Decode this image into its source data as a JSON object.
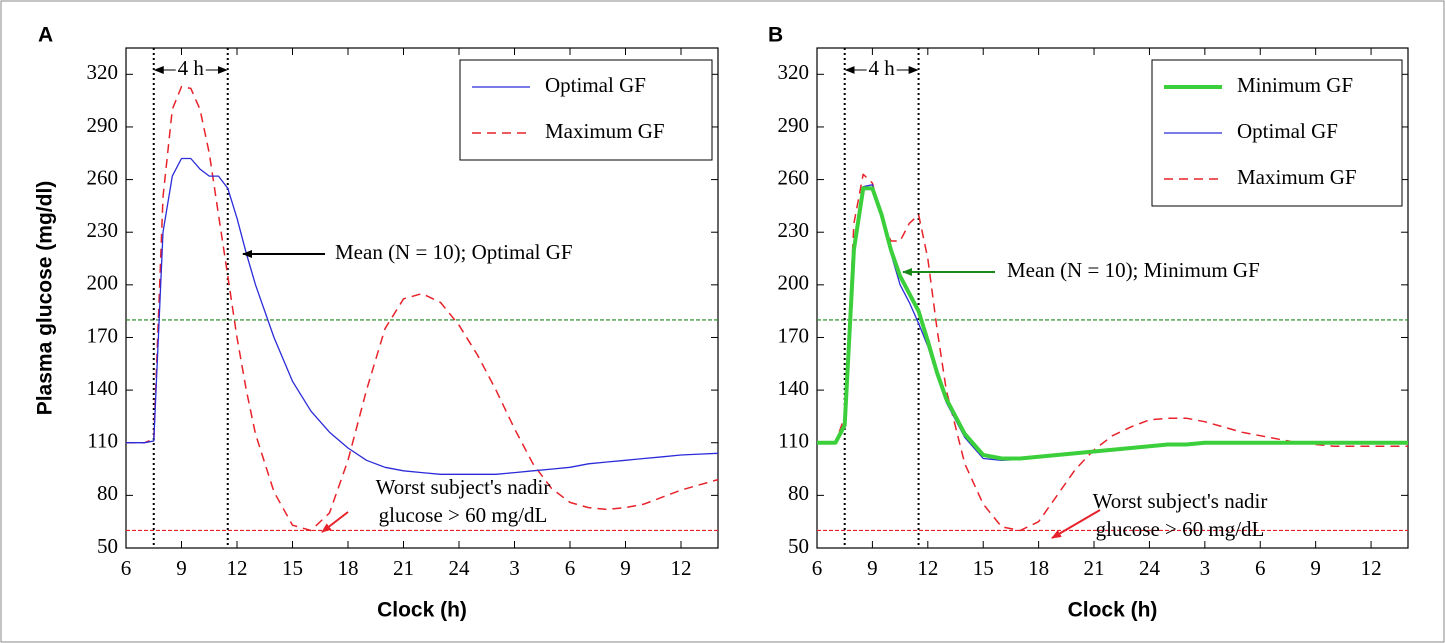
{
  "chart_data": [
    {
      "type": "line",
      "panel_label": "A",
      "ylabel": "Plasma glucose (mg/dl)",
      "xlabel": "Clock (h)",
      "xlim": [
        6,
        38
      ],
      "ylim": [
        50,
        335
      ],
      "xticks": [
        6,
        9,
        12,
        15,
        18,
        21,
        24,
        {
          "value": 27,
          "label": "3"
        },
        {
          "value": 30,
          "label": "6"
        },
        {
          "value": 33,
          "label": "9"
        },
        {
          "value": 36,
          "label": "12"
        }
      ],
      "yticks": [
        50,
        80,
        110,
        140,
        170,
        200,
        230,
        260,
        290,
        320
      ],
      "x": [
        6,
        7,
        7.5,
        8,
        8.5,
        9,
        9.5,
        10,
        10.5,
        11,
        11.5,
        12,
        12.5,
        13,
        14,
        15,
        16,
        17,
        18,
        19,
        20,
        21,
        22,
        23,
        24,
        25,
        26,
        27,
        28,
        29,
        30,
        31,
        32,
        33,
        34,
        35,
        36,
        37,
        38
      ],
      "series": [
        {
          "name": "Optimal GF",
          "color": "#2b2bd9",
          "width": 1.3,
          "dash": false,
          "values": [
            110,
            110,
            111,
            230,
            262,
            272,
            272,
            266,
            262,
            262,
            255,
            238,
            218,
            200,
            170,
            145,
            128,
            116,
            107,
            100,
            96,
            94,
            93,
            92,
            92,
            92,
            92,
            93,
            94,
            95,
            96,
            98,
            99,
            100,
            101,
            102,
            103,
            103.5,
            104
          ]
        },
        {
          "name": "Maximum GF",
          "color": "#e8222a",
          "width": 1.5,
          "dash": true,
          "values": [
            110,
            110,
            112,
            250,
            300,
            313,
            312,
            300,
            275,
            240,
            205,
            170,
            140,
            115,
            82,
            63,
            60,
            70,
            100,
            140,
            175,
            192,
            195,
            190,
            177,
            160,
            140,
            118,
            98,
            84,
            76,
            73,
            72,
            73,
            75,
            79,
            83,
            86,
            89
          ]
        }
      ],
      "hlines": [
        {
          "value": 180,
          "color": "#1a8a1a"
        },
        {
          "value": 60,
          "color": "#e8222a"
        }
      ],
      "vlines": [
        7.5,
        11.5
      ],
      "span_label": "4 h",
      "annotations": [
        {
          "lines": [
            "Mean (N = 10); Optimal GF"
          ],
          "color": "#000000"
        },
        {
          "lines": [
            "Worst subject's nadir",
            "glucose > 60 mg/dL"
          ],
          "color": "#e8222a"
        }
      ]
    },
    {
      "type": "line",
      "panel_label": "B",
      "xlabel": "Clock (h)",
      "xlim": [
        6,
        38
      ],
      "ylim": [
        50,
        335
      ],
      "xticks": [
        6,
        9,
        12,
        15,
        18,
        21,
        24,
        {
          "value": 27,
          "label": "3"
        },
        {
          "value": 30,
          "label": "6"
        },
        {
          "value": 33,
          "label": "9"
        },
        {
          "value": 36,
          "label": "12"
        }
      ],
      "yticks": [
        50,
        80,
        110,
        140,
        170,
        200,
        230,
        260,
        290,
        320
      ],
      "x": [
        6,
        7,
        7.5,
        8,
        8.5,
        9,
        9.5,
        10,
        10.5,
        11,
        11.5,
        12,
        12.5,
        13,
        14,
        15,
        16,
        17,
        18,
        19,
        20,
        21,
        22,
        23,
        24,
        25,
        26,
        27,
        28,
        29,
        30,
        31,
        32,
        33,
        34,
        35,
        36,
        37,
        38
      ],
      "series": [
        {
          "name": "Minimum GF",
          "color": "#3ccf3c",
          "width": 4,
          "dash": false,
          "values": [
            110,
            110,
            120,
            220,
            255,
            255,
            240,
            220,
            205,
            195,
            185,
            168,
            150,
            135,
            115,
            103,
            101,
            101,
            102,
            103,
            104,
            105,
            106,
            107,
            108,
            109,
            109,
            110,
            110,
            110,
            110,
            110,
            110,
            110,
            110,
            110,
            110,
            110,
            110
          ]
        },
        {
          "name": "Optimal GF",
          "color": "#2b2bd9",
          "width": 1.3,
          "dash": false,
          "values": [
            110,
            110,
            119,
            222,
            256,
            257,
            240,
            218,
            200,
            190,
            178,
            165,
            148,
            133,
            113,
            101,
            100,
            100.5,
            101.5,
            102.5,
            103.5,
            104.5,
            105.5,
            106.5,
            107.5,
            108.5,
            109,
            109.5,
            110,
            110,
            110,
            110,
            110,
            110,
            110,
            110,
            110,
            110,
            110
          ]
        },
        {
          "name": "Maximum GF",
          "color": "#e8222a",
          "width": 1.5,
          "dash": true,
          "values": [
            110,
            110,
            125,
            235,
            263,
            258,
            238,
            225,
            225,
            235,
            240,
            215,
            175,
            140,
            98,
            75,
            62,
            60,
            65,
            80,
            95,
            106,
            114,
            119,
            123,
            124,
            124,
            122,
            119,
            116,
            114,
            112,
            110,
            109,
            108,
            108,
            108,
            108,
            108
          ]
        }
      ],
      "hlines": [
        {
          "value": 180,
          "color": "#1a8a1a"
        },
        {
          "value": 60,
          "color": "#e8222a"
        }
      ],
      "vlines": [
        7.5,
        11.5
      ],
      "span_label": "4 h",
      "annotations": [
        {
          "lines": [
            "Mean (N = 10); Minimum GF"
          ],
          "color": "#1a8a1a"
        },
        {
          "lines": [
            "Worst subject's nadir",
            "glucose > 60 mg/dL"
          ],
          "color": "#e8222a"
        }
      ]
    }
  ]
}
